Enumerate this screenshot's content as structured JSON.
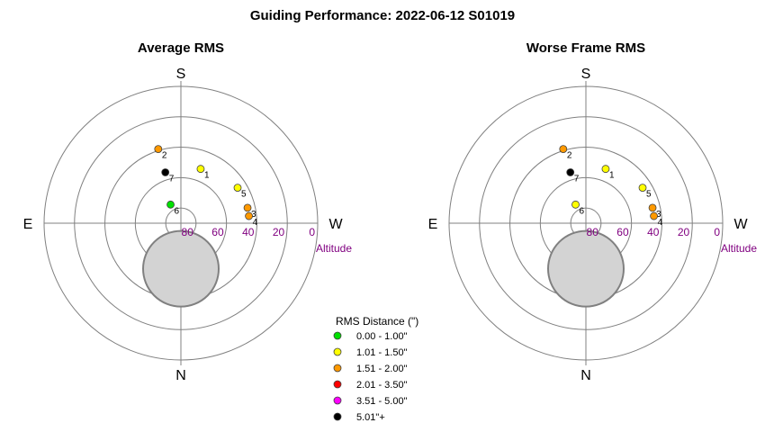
{
  "title": "Guiding Performance: 2022-06-12 S01019",
  "colors": {
    "ring": "#808080",
    "altitude_label": "#800080",
    "moon_fill": "#d3d3d3",
    "moon_stroke": "#808080"
  },
  "legend": {
    "title": "RMS Distance (\")",
    "items": [
      {
        "label": "0.00 - 1.00\"",
        "color": "#00e000"
      },
      {
        "label": "1.01 - 1.50\"",
        "color": "#ffff00"
      },
      {
        "label": "1.51 - 2.00\"",
        "color": "#ff9900"
      },
      {
        "label": "2.01 - 3.50\"",
        "color": "#ff0000"
      },
      {
        "label": "3.51 - 5.00\"",
        "color": "#ff00ff"
      },
      {
        "label": "5.01\"+",
        "color": "#000000"
      }
    ]
  },
  "chart_data": [
    {
      "type": "scatter",
      "projection": "polar (azimuth/altitude)",
      "title": "Average RMS",
      "directions": {
        "top": "S",
        "bottom": "N",
        "left": "E",
        "right": "W"
      },
      "altitude_ticks": [
        "80",
        "60",
        "40",
        "20",
        "0"
      ],
      "altitude_label": "Altitude",
      "altitude_range": [
        0,
        90
      ],
      "moon": {
        "azimuth": 0,
        "altitude": 60
      },
      "points": [
        {
          "label": "1",
          "azimuth": 160,
          "altitude": 52,
          "color": "#ffff00"
        },
        {
          "label": "2",
          "azimuth": 197,
          "altitude": 39,
          "color": "#ff9900"
        },
        {
          "label": "3",
          "azimuth": 103,
          "altitude": 45,
          "color": "#ff9900"
        },
        {
          "label": "4",
          "azimuth": 96,
          "altitude": 45,
          "color": "#ff9900"
        },
        {
          "label": "5",
          "azimuth": 122,
          "altitude": 46,
          "color": "#ffff00"
        },
        {
          "label": "6",
          "azimuth": 209,
          "altitude": 76,
          "color": "#00e000"
        },
        {
          "label": "7",
          "azimuth": 197,
          "altitude": 55,
          "color": "#000000"
        }
      ]
    },
    {
      "type": "scatter",
      "projection": "polar (azimuth/altitude)",
      "title": "Worse Frame RMS",
      "directions": {
        "top": "S",
        "bottom": "N",
        "left": "E",
        "right": "W"
      },
      "altitude_ticks": [
        "80",
        "60",
        "40",
        "20",
        "0"
      ],
      "altitude_label": "Altitude",
      "altitude_range": [
        0,
        90
      ],
      "moon": {
        "azimuth": 0,
        "altitude": 60
      },
      "points": [
        {
          "label": "1",
          "azimuth": 160,
          "altitude": 52,
          "color": "#ffff00"
        },
        {
          "label": "2",
          "azimuth": 197,
          "altitude": 39,
          "color": "#ff9900"
        },
        {
          "label": "3",
          "azimuth": 103,
          "altitude": 45,
          "color": "#ff9900"
        },
        {
          "label": "4",
          "azimuth": 96,
          "altitude": 45,
          "color": "#ff9900"
        },
        {
          "label": "5",
          "azimuth": 122,
          "altitude": 46,
          "color": "#ffff00"
        },
        {
          "label": "6",
          "azimuth": 209,
          "altitude": 76,
          "color": "#ffff00"
        },
        {
          "label": "7",
          "azimuth": 197,
          "altitude": 55,
          "color": "#000000"
        }
      ]
    }
  ]
}
